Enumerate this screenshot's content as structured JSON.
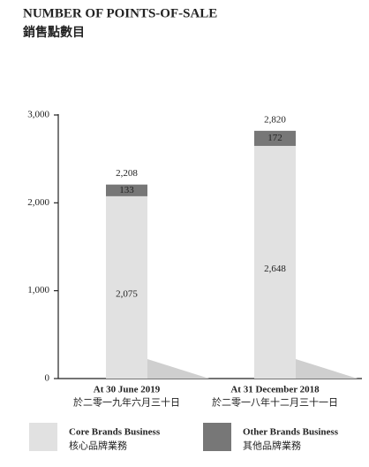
{
  "chart_data": {
    "type": "stacked_bar",
    "title": "NUMBER OF POINTS-OF-SALE",
    "subtitle": "銷售點數目",
    "categories": [
      "At 30 June 2019",
      "At 31 December 2018"
    ],
    "categories_zh": [
      "於二零一九年六月三十日",
      "於二零一八年十二月三十一日"
    ],
    "series": [
      {
        "name": "Core Brands Business",
        "name_zh": "核心品牌業務",
        "color": "#e1e1e1",
        "values": [
          2075,
          2648
        ],
        "value_labels": [
          "2,075",
          "2,648"
        ]
      },
      {
        "name": "Other Brands Business",
        "name_zh": "其他品牌業務",
        "color": "#777777",
        "values": [
          133,
          172
        ]
      }
    ],
    "totals": [
      2208,
      2820
    ],
    "total_labels": [
      "2,208",
      "2,820"
    ],
    "ylim": [
      0,
      3000
    ],
    "yticks": [
      0,
      {
        "value": 1000,
        "label": "1,000"
      },
      {
        "value": 2000,
        "label": "2,000"
      },
      {
        "value": 3000,
        "label": "3,000"
      }
    ],
    "grid": false
  }
}
